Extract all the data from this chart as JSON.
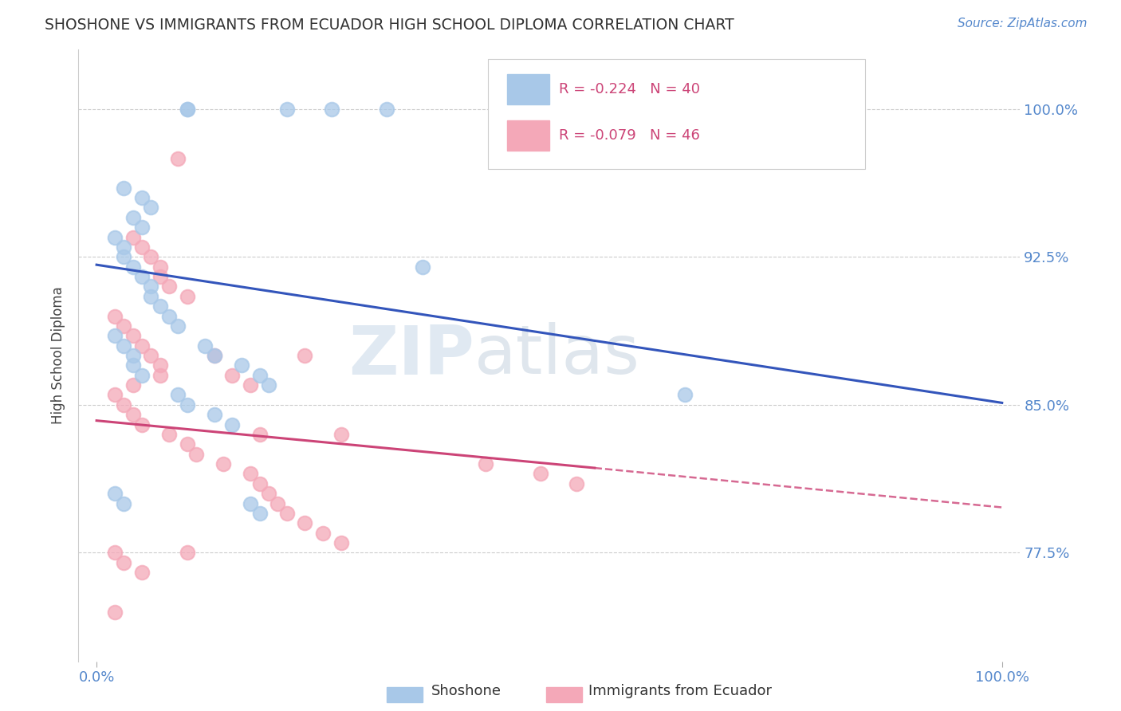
{
  "title": "SHOSHONE VS IMMIGRANTS FROM ECUADOR HIGH SCHOOL DIPLOMA CORRELATION CHART",
  "source": "Source: ZipAtlas.com",
  "ylabel": "High School Diploma",
  "ymin": 0.72,
  "ymax": 1.03,
  "xmin": -0.02,
  "xmax": 1.02,
  "ytick_positions": [
    0.775,
    0.85,
    0.925,
    1.0
  ],
  "ytick_labels": [
    "77.5%",
    "85.0%",
    "92.5%",
    "100.0%"
  ],
  "shoshone_color": "#a8c8e8",
  "ecuador_color": "#f4a8b8",
  "shoshone_line_color": "#3355bb",
  "ecuador_line_color": "#cc4477",
  "watermark": "ZIPatlas",
  "background_color": "#ffffff",
  "title_color": "#333333",
  "tick_color": "#5588cc",
  "blue_line_x0": 0.0,
  "blue_line_y0": 0.921,
  "blue_line_x1": 1.0,
  "blue_line_y1": 0.851,
  "pink_line_x0": 0.0,
  "pink_line_y0": 0.842,
  "pink_line_x1_solid": 0.55,
  "pink_line_y1_solid": 0.818,
  "pink_line_x1_dash": 1.0,
  "pink_line_y1_dash": 0.798,
  "shoshone_x": [
    0.1,
    0.1,
    0.21,
    0.26,
    0.32,
    0.03,
    0.05,
    0.06,
    0.04,
    0.05,
    0.02,
    0.03,
    0.03,
    0.04,
    0.05,
    0.06,
    0.06,
    0.07,
    0.08,
    0.09,
    0.02,
    0.03,
    0.04,
    0.04,
    0.05,
    0.12,
    0.13,
    0.16,
    0.18,
    0.19,
    0.09,
    0.1,
    0.13,
    0.15,
    0.36,
    0.65,
    0.02,
    0.03,
    0.17,
    0.18
  ],
  "shoshone_y": [
    1.0,
    1.0,
    1.0,
    1.0,
    1.0,
    0.96,
    0.955,
    0.95,
    0.945,
    0.94,
    0.935,
    0.93,
    0.925,
    0.92,
    0.915,
    0.91,
    0.905,
    0.9,
    0.895,
    0.89,
    0.885,
    0.88,
    0.875,
    0.87,
    0.865,
    0.88,
    0.875,
    0.87,
    0.865,
    0.86,
    0.855,
    0.85,
    0.845,
    0.84,
    0.92,
    0.855,
    0.805,
    0.8,
    0.8,
    0.795
  ],
  "ecuador_x": [
    0.09,
    0.04,
    0.04,
    0.05,
    0.06,
    0.07,
    0.07,
    0.08,
    0.1,
    0.02,
    0.03,
    0.04,
    0.05,
    0.06,
    0.07,
    0.07,
    0.13,
    0.15,
    0.17,
    0.23,
    0.02,
    0.03,
    0.04,
    0.05,
    0.08,
    0.1,
    0.11,
    0.14,
    0.17,
    0.18,
    0.19,
    0.2,
    0.21,
    0.23,
    0.25,
    0.27,
    0.43,
    0.49,
    0.53,
    0.02,
    0.03,
    0.05,
    0.1,
    0.18,
    0.27,
    0.02
  ],
  "ecuador_y": [
    0.975,
    0.86,
    0.935,
    0.93,
    0.925,
    0.92,
    0.915,
    0.91,
    0.905,
    0.895,
    0.89,
    0.885,
    0.88,
    0.875,
    0.87,
    0.865,
    0.875,
    0.865,
    0.86,
    0.875,
    0.855,
    0.85,
    0.845,
    0.84,
    0.835,
    0.83,
    0.825,
    0.82,
    0.815,
    0.81,
    0.805,
    0.8,
    0.795,
    0.79,
    0.785,
    0.78,
    0.82,
    0.815,
    0.81,
    0.775,
    0.77,
    0.765,
    0.775,
    0.835,
    0.835,
    0.745
  ]
}
